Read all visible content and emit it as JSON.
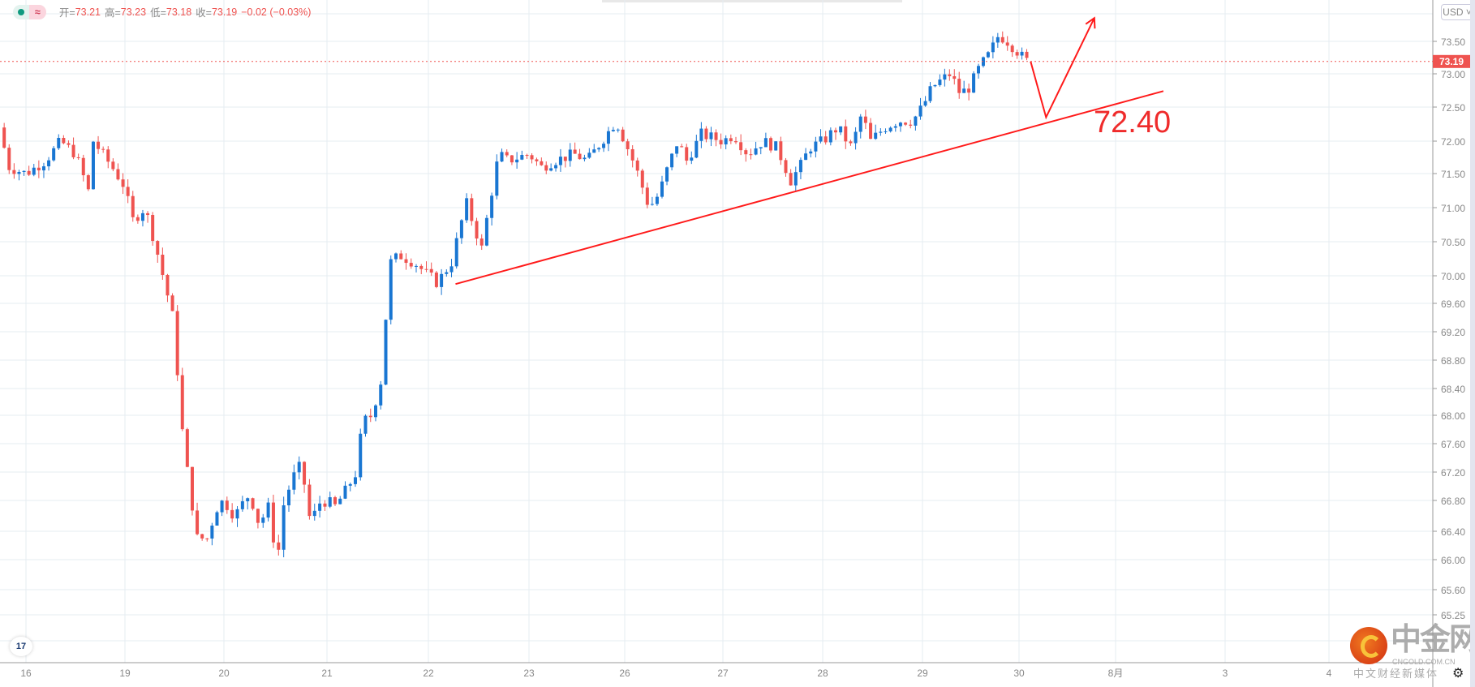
{
  "legend": {
    "open_label": "开=",
    "open": "73.21",
    "high_label": "高=",
    "high": "73.23",
    "low_label": "低=",
    "low": "73.18",
    "close_label": "收=",
    "close": "73.19",
    "change": "−0.02 (−0.03%)",
    "wave_icon": "≈"
  },
  "currency_button": "USD ˅",
  "tv_logo": "17",
  "watermark": {
    "name": "中金网",
    "domain": "CNGOLD.COM.CN",
    "slogan": "中文财经新媒体"
  },
  "settings_icon": "⚙",
  "colors": {
    "up": "#1976d2",
    "down": "#ef5350",
    "annotation": "#ff1a1a",
    "grid": "#e6ecf2"
  },
  "chart_data": {
    "type": "candlestick",
    "current_price": "73.19",
    "y_ticks": [
      "73.50",
      "73.00",
      "72.50",
      "72.00",
      "71.50",
      "71.00",
      "70.50",
      "70.00",
      "69.60",
      "69.20",
      "68.80",
      "68.40",
      "68.00",
      "67.60",
      "67.20",
      "66.80",
      "66.40",
      "66.00",
      "65.60",
      "65.25"
    ],
    "x_ticks": [
      {
        "label": "16",
        "t": 0
      },
      {
        "label": "19",
        "t": 1
      },
      {
        "label": "20",
        "t": 2
      },
      {
        "label": "21",
        "t": 3
      },
      {
        "label": "22",
        "t": 4
      },
      {
        "label": "23",
        "t": 5
      },
      {
        "label": "26",
        "t": 6
      },
      {
        "label": "27",
        "t": 7
      },
      {
        "label": "28",
        "t": 8
      },
      {
        "label": "29",
        "t": 9
      },
      {
        "label": "30",
        "t": 10
      },
      {
        "label": "8月",
        "t": 11
      },
      {
        "label": "3",
        "t": 12.1
      },
      {
        "label": "4",
        "t": 13.1
      }
    ],
    "close_path": [
      [
        -0.27,
        72.2
      ],
      [
        -0.17,
        71.6
      ],
      [
        0,
        71.5
      ],
      [
        0.2,
        71.7
      ],
      [
        0.35,
        72.0
      ],
      [
        0.5,
        71.8
      ],
      [
        0.64,
        71.2
      ],
      [
        0.68,
        72.0
      ],
      [
        0.87,
        71.6
      ],
      [
        1.0,
        71.3
      ],
      [
        1.07,
        70.8
      ],
      [
        1.2,
        71.0
      ],
      [
        1.3,
        70.5
      ],
      [
        1.4,
        69.9
      ],
      [
        1.5,
        69.3
      ],
      [
        1.56,
        68.0
      ],
      [
        1.64,
        67.1
      ],
      [
        1.73,
        66.3
      ],
      [
        1.83,
        66.3
      ],
      [
        1.92,
        66.7
      ],
      [
        2.0,
        66.8
      ],
      [
        2.11,
        66.6
      ],
      [
        2.25,
        66.9
      ],
      [
        2.34,
        66.5
      ],
      [
        2.43,
        66.7
      ],
      [
        2.52,
        66.0
      ],
      [
        2.57,
        66.7
      ],
      [
        2.66,
        67.1
      ],
      [
        2.75,
        67.3
      ],
      [
        2.84,
        66.5
      ],
      [
        2.94,
        66.8
      ],
      [
        3.0,
        66.8
      ],
      [
        3.07,
        66.7
      ],
      [
        3.17,
        66.9
      ],
      [
        3.29,
        67.2
      ],
      [
        3.35,
        67.9
      ],
      [
        3.44,
        68.0
      ],
      [
        3.53,
        68.5
      ],
      [
        3.58,
        69.4
      ],
      [
        3.63,
        70.2
      ],
      [
        3.72,
        70.3
      ],
      [
        3.86,
        70.2
      ],
      [
        4.0,
        70.0
      ],
      [
        4.09,
        69.9
      ],
      [
        4.23,
        70.2
      ],
      [
        4.33,
        70.8
      ],
      [
        4.37,
        71.1
      ],
      [
        4.46,
        70.7
      ],
      [
        4.53,
        70.4
      ],
      [
        4.6,
        71.0
      ],
      [
        4.7,
        71.8
      ],
      [
        4.79,
        71.7
      ],
      [
        5.0,
        71.8
      ],
      [
        5.13,
        71.6
      ],
      [
        5.27,
        71.7
      ],
      [
        5.47,
        71.8
      ],
      [
        5.61,
        71.7
      ],
      [
        5.76,
        72.0
      ],
      [
        5.91,
        72.3
      ],
      [
        6.0,
        72.0
      ],
      [
        6.11,
        71.6
      ],
      [
        6.25,
        71.0
      ],
      [
        6.35,
        71.2
      ],
      [
        6.44,
        71.6
      ],
      [
        6.54,
        72.0
      ],
      [
        6.63,
        71.7
      ],
      [
        6.78,
        72.1
      ],
      [
        7.0,
        72.0
      ],
      [
        7.11,
        72.1
      ],
      [
        7.25,
        71.8
      ],
      [
        7.4,
        72.0
      ],
      [
        7.54,
        71.9
      ],
      [
        7.68,
        71.4
      ],
      [
        7.77,
        71.6
      ],
      [
        7.87,
        71.9
      ],
      [
        8.0,
        72.0
      ],
      [
        8.15,
        72.2
      ],
      [
        8.29,
        71.9
      ],
      [
        8.39,
        72.4
      ],
      [
        8.48,
        72.0
      ],
      [
        8.62,
        72.2
      ],
      [
        8.76,
        72.3
      ],
      [
        8.9,
        72.3
      ],
      [
        9.0,
        72.5
      ],
      [
        9.1,
        72.8
      ],
      [
        9.19,
        72.9
      ],
      [
        9.29,
        73.0
      ],
      [
        9.39,
        72.7
      ],
      [
        9.49,
        72.8
      ],
      [
        9.59,
        73.1
      ],
      [
        9.69,
        73.3
      ],
      [
        9.79,
        73.6
      ],
      [
        9.88,
        73.5
      ],
      [
        9.98,
        73.35
      ],
      [
        10.07,
        73.2
      ],
      [
        10.12,
        73.19
      ]
    ],
    "trendline": [
      [
        4.27,
        69.88
      ],
      [
        11.48,
        72.74
      ]
    ],
    "projection_arrow": [
      [
        10.12,
        73.19
      ],
      [
        10.28,
        72.35
      ],
      [
        10.78,
        73.86
      ]
    ],
    "annotation": "72.40"
  }
}
